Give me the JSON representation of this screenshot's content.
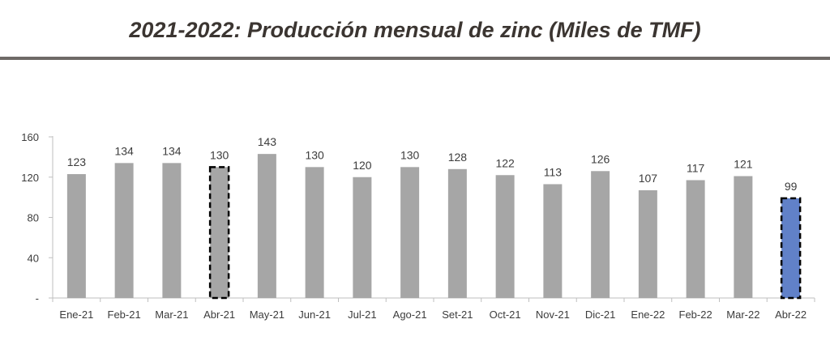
{
  "title": "2021-2022: Producción mensual de zinc (Miles de TMF)",
  "chart_data": {
    "type": "bar",
    "title": "2021-2022: Producción mensual de zinc (Miles de TMF)",
    "categories": [
      "Ene-21",
      "Feb-21",
      "Mar-21",
      "Abr-21",
      "May-21",
      "Jun-21",
      "Jul-21",
      "Ago-21",
      "Set-21",
      "Oct-21",
      "Nov-21",
      "Dic-21",
      "Ene-22",
      "Feb-22",
      "Mar-22",
      "Abr-22"
    ],
    "values": [
      123,
      134,
      134,
      130,
      143,
      130,
      120,
      130,
      128,
      122,
      113,
      126,
      107,
      117,
      121,
      99
    ],
    "data_labels": [
      "123",
      "134",
      "134",
      "130",
      "143",
      "130",
      "120",
      "130",
      "128",
      "122",
      "113",
      "126",
      "107",
      "117",
      "121",
      "99"
    ],
    "y_ticks": [
      0,
      40,
      80,
      120,
      160
    ],
    "y_tick_labels": [
      "-",
      "40",
      "80",
      "120",
      "160"
    ],
    "ylim": [
      0,
      160
    ],
    "xlabel": "",
    "ylabel": "",
    "grid": false,
    "legend": "none",
    "highlighted_dashed": [
      "Abr-21",
      "Abr-22"
    ],
    "colors": {
      "bar": "#a6a6a6",
      "highlight": "#6181c8",
      "dash": "#000000",
      "axis": "#bfbfbf",
      "text": "#3c3c3c",
      "title": "#3b3531",
      "rule": "#6e6a67"
    }
  }
}
